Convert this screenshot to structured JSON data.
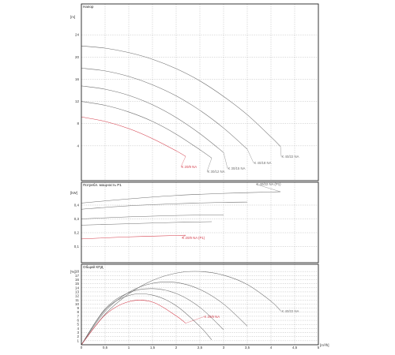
{
  "chart_data": {
    "type": "line",
    "x_units": "[m³/h]",
    "x_ticks": [
      "0",
      "0,5",
      "1",
      "1,5",
      "2",
      "2,5",
      "3",
      "3,5",
      "4",
      "4,5",
      "5"
    ],
    "xlim": [
      0,
      5
    ],
    "colors": {
      "highlight": "#d43c4a",
      "normal": "#6e6e6e",
      "frame": "#222222",
      "grid": "#9a9a9a"
    },
    "panels": [
      {
        "id": "head",
        "title": "Напор",
        "y_units": "[m]",
        "y_ticks": [
          "4",
          "8",
          "12",
          "16",
          "20",
          "24"
        ],
        "ylim": [
          0,
          28
        ],
        "series": [
          {
            "name": "K 40/22 NA",
            "highlight": false,
            "x": [
              0,
              0.5,
              1,
              1.5,
              2,
              2.5,
              3,
              3.5,
              4,
              4.2
            ],
            "y": [
              22,
              21.6,
              20.8,
              19.6,
              17.9,
              15.7,
              12.9,
              9.6,
              5.6,
              3.9
            ]
          },
          {
            "name": "K 40/18 NA",
            "highlight": false,
            "x": [
              0,
              0.5,
              1,
              1.5,
              2,
              2.5,
              3,
              3.5
            ],
            "y": [
              18,
              17.5,
              16.5,
              15,
              13,
              10.4,
              7.2,
              3.4
            ]
          },
          {
            "name": "K 30/15 NA",
            "highlight": false,
            "x": [
              0,
              0.5,
              1,
              1.5,
              2,
              2.5,
              3
            ],
            "y": [
              14.8,
              14.2,
              13.1,
              11.4,
              9.1,
              6.2,
              2.8
            ]
          },
          {
            "name": "K 30/12 NA",
            "highlight": false,
            "x": [
              0,
              0.5,
              1,
              1.5,
              2,
              2.5,
              2.75
            ],
            "y": [
              12,
              11.3,
              10.1,
              8.4,
              6.1,
              3.3,
              1.8
            ]
          },
          {
            "name": "K 20/9 NA",
            "highlight": true,
            "x": [
              0,
              0.5,
              1,
              1.5,
              2,
              2.2
            ],
            "y": [
              9.2,
              8.4,
              7.1,
              5.3,
              3.1,
              2.1
            ]
          }
        ]
      },
      {
        "id": "power",
        "title": "Потребл. мощность P1",
        "y_units": "[kW]",
        "y_ticks": [
          "0,1",
          "0,2",
          "0,3",
          "0,4"
        ],
        "ylim": [
          0,
          0.52
        ],
        "series": [
          {
            "name": "K 40/22 NA (P1)",
            "highlight": false,
            "x": [
              0,
              1,
              2,
              3,
              4,
              4.2
            ],
            "y": [
              0.415,
              0.445,
              0.47,
              0.485,
              0.495,
              0.497
            ]
          },
          {
            "name": "",
            "highlight": false,
            "x": [
              0,
              1,
              2,
              3,
              3.5
            ],
            "y": [
              0.37,
              0.395,
              0.41,
              0.42,
              0.422
            ]
          },
          {
            "name": "",
            "highlight": false,
            "x": [
              0,
              1,
              2,
              3
            ],
            "y": [
              0.3,
              0.315,
              0.325,
              0.33
            ]
          },
          {
            "name": "",
            "highlight": false,
            "x": [
              0,
              1,
              2,
              2.75
            ],
            "y": [
              0.255,
              0.265,
              0.275,
              0.28
            ]
          },
          {
            "name": "K 20/9 NA (P1)",
            "highlight": true,
            "x": [
              0,
              1,
              2,
              2.2
            ],
            "y": [
              0.155,
              0.17,
              0.18,
              0.182
            ]
          }
        ]
      },
      {
        "id": "efficiency",
        "title": "Общий КПД",
        "y_units": "[%]",
        "y_ticks": [
          "1",
          "2",
          "3",
          "4",
          "5",
          "6",
          "7",
          "8",
          "9",
          "10",
          "11",
          "12",
          "13",
          "14",
          "15",
          "16",
          "17",
          "18"
        ],
        "ylim": [
          0,
          19
        ],
        "series": [
          {
            "name": "K 40/22 NA",
            "highlight": false,
            "x": [
              0,
              0.5,
              1,
              1.5,
              2,
              2.5,
              3,
              3.5,
              4,
              4.2
            ],
            "y": [
              0,
              7.5,
              12.5,
              15.8,
              17.6,
              18,
              17.1,
              14.8,
              10.7,
              8.4
            ]
          },
          {
            "name": "",
            "highlight": false,
            "x": [
              0,
              0.5,
              1,
              1.5,
              2,
              2.5,
              3,
              3.5
            ],
            "y": [
              0,
              8.2,
              12.9,
              15.1,
              15.3,
              13.6,
              10,
              4.6
            ]
          },
          {
            "name": "",
            "highlight": false,
            "x": [
              0,
              0.5,
              1,
              1.5,
              2,
              2.5,
              3
            ],
            "y": [
              0,
              8.8,
              12.8,
              13.8,
              12.6,
              9.2,
              3.7
            ]
          },
          {
            "name": "",
            "highlight": false,
            "x": [
              0,
              0.5,
              1,
              1.5,
              2,
              2.5,
              2.75
            ],
            "y": [
              0,
              8.6,
              12.1,
              12.2,
              9.6,
              4.5,
              1.2
            ]
          },
          {
            "name": "K 20/9 NA",
            "highlight": true,
            "x": [
              0,
              0.5,
              1,
              1.5,
              2,
              2.2
            ],
            "y": [
              0,
              7.3,
              10.6,
              10.5,
              7.1,
              5.3
            ]
          }
        ]
      }
    ]
  }
}
